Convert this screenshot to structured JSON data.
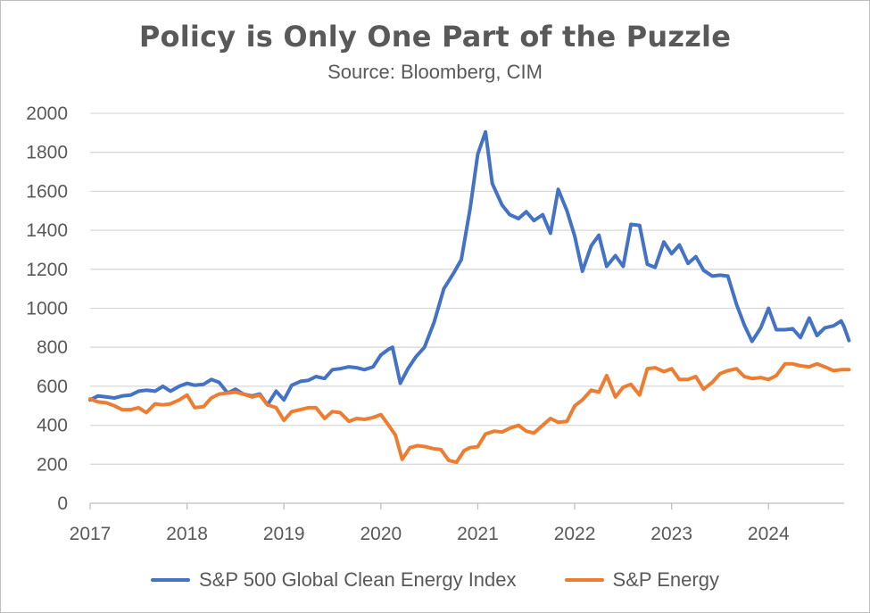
{
  "chart_data": {
    "type": "line",
    "title": "Policy is Only One Part of the Puzzle",
    "subtitle": "Source: Bloomberg, CIM",
    "xlabel": "",
    "ylabel": "",
    "ylim": [
      0,
      2000
    ],
    "y_ticks": [
      "0",
      "200",
      "400",
      "600",
      "800",
      "1000",
      "1200",
      "1400",
      "1600",
      "1800",
      "2000"
    ],
    "x_ticks": [
      "2017",
      "2018",
      "2019",
      "2020",
      "2021",
      "2022",
      "2023",
      "2024"
    ],
    "xlim": [
      2017.0,
      2024.78
    ],
    "grid": true,
    "legend_position": "bottom",
    "series": [
      {
        "name": "S&P 500 Global Clean Energy Index",
        "color": "#4472C4",
        "points": [
          [
            2017.0,
            530
          ],
          [
            2017.08,
            550
          ],
          [
            2017.17,
            545
          ],
          [
            2017.25,
            540
          ],
          [
            2017.33,
            550
          ],
          [
            2017.42,
            555
          ],
          [
            2017.5,
            575
          ],
          [
            2017.58,
            580
          ],
          [
            2017.67,
            575
          ],
          [
            2017.75,
            600
          ],
          [
            2017.83,
            575
          ],
          [
            2017.92,
            600
          ],
          [
            2018.0,
            615
          ],
          [
            2018.08,
            605
          ],
          [
            2018.17,
            610
          ],
          [
            2018.25,
            635
          ],
          [
            2018.33,
            620
          ],
          [
            2018.42,
            565
          ],
          [
            2018.5,
            585
          ],
          [
            2018.58,
            560
          ],
          [
            2018.67,
            550
          ],
          [
            2018.75,
            560
          ],
          [
            2018.83,
            505
          ],
          [
            2018.92,
            575
          ],
          [
            2019.0,
            530
          ],
          [
            2019.08,
            605
          ],
          [
            2019.17,
            625
          ],
          [
            2019.25,
            630
          ],
          [
            2019.33,
            650
          ],
          [
            2019.42,
            640
          ],
          [
            2019.5,
            685
          ],
          [
            2019.58,
            690
          ],
          [
            2019.67,
            700
          ],
          [
            2019.75,
            695
          ],
          [
            2019.83,
            685
          ],
          [
            2019.92,
            700
          ],
          [
            2020.0,
            760
          ],
          [
            2020.08,
            790
          ],
          [
            2020.12,
            800
          ],
          [
            2020.2,
            615
          ],
          [
            2020.28,
            690
          ],
          [
            2020.36,
            750
          ],
          [
            2020.45,
            800
          ],
          [
            2020.55,
            930
          ],
          [
            2020.65,
            1100
          ],
          [
            2020.75,
            1180
          ],
          [
            2020.83,
            1250
          ],
          [
            2020.92,
            1510
          ],
          [
            2021.0,
            1790
          ],
          [
            2021.08,
            1905
          ],
          [
            2021.15,
            1640
          ],
          [
            2021.25,
            1530
          ],
          [
            2021.33,
            1480
          ],
          [
            2021.42,
            1460
          ],
          [
            2021.5,
            1495
          ],
          [
            2021.58,
            1450
          ],
          [
            2021.67,
            1480
          ],
          [
            2021.75,
            1385
          ],
          [
            2021.83,
            1610
          ],
          [
            2021.92,
            1500
          ],
          [
            2022.0,
            1370
          ],
          [
            2022.08,
            1190
          ],
          [
            2022.17,
            1320
          ],
          [
            2022.25,
            1375
          ],
          [
            2022.33,
            1215
          ],
          [
            2022.42,
            1270
          ],
          [
            2022.5,
            1215
          ],
          [
            2022.58,
            1430
          ],
          [
            2022.67,
            1425
          ],
          [
            2022.75,
            1225
          ],
          [
            2022.83,
            1210
          ],
          [
            2022.92,
            1340
          ],
          [
            2023.0,
            1280
          ],
          [
            2023.08,
            1325
          ],
          [
            2023.17,
            1230
          ],
          [
            2023.25,
            1265
          ],
          [
            2023.33,
            1195
          ],
          [
            2023.42,
            1165
          ],
          [
            2023.5,
            1170
          ],
          [
            2023.58,
            1165
          ],
          [
            2023.67,
            1020
          ],
          [
            2023.75,
            915
          ],
          [
            2023.83,
            830
          ],
          [
            2023.92,
            900
          ],
          [
            2024.0,
            1000
          ],
          [
            2024.08,
            890
          ],
          [
            2024.17,
            890
          ],
          [
            2024.25,
            895
          ],
          [
            2024.33,
            850
          ],
          [
            2024.42,
            950
          ],
          [
            2024.5,
            860
          ],
          [
            2024.58,
            900
          ],
          [
            2024.67,
            910
          ],
          [
            2024.75,
            935
          ],
          [
            2024.78,
            905
          ],
          [
            2024.83,
            835
          ]
        ]
      },
      {
        "name": "S&P Energy",
        "color": "#ED7D31",
        "points": [
          [
            2017.0,
            535
          ],
          [
            2017.08,
            520
          ],
          [
            2017.17,
            515
          ],
          [
            2017.25,
            500
          ],
          [
            2017.33,
            480
          ],
          [
            2017.42,
            480
          ],
          [
            2017.5,
            490
          ],
          [
            2017.58,
            465
          ],
          [
            2017.67,
            510
          ],
          [
            2017.75,
            505
          ],
          [
            2017.83,
            510
          ],
          [
            2017.92,
            530
          ],
          [
            2018.0,
            555
          ],
          [
            2018.08,
            490
          ],
          [
            2018.17,
            495
          ],
          [
            2018.25,
            540
          ],
          [
            2018.33,
            560
          ],
          [
            2018.42,
            565
          ],
          [
            2018.5,
            570
          ],
          [
            2018.58,
            560
          ],
          [
            2018.67,
            545
          ],
          [
            2018.75,
            555
          ],
          [
            2018.83,
            505
          ],
          [
            2018.92,
            490
          ],
          [
            2019.0,
            425
          ],
          [
            2019.08,
            470
          ],
          [
            2019.17,
            480
          ],
          [
            2019.25,
            490
          ],
          [
            2019.33,
            490
          ],
          [
            2019.42,
            435
          ],
          [
            2019.5,
            470
          ],
          [
            2019.58,
            465
          ],
          [
            2019.67,
            420
          ],
          [
            2019.75,
            435
          ],
          [
            2019.83,
            430
          ],
          [
            2019.92,
            440
          ],
          [
            2020.0,
            455
          ],
          [
            2020.08,
            400
          ],
          [
            2020.15,
            350
          ],
          [
            2020.22,
            225
          ],
          [
            2020.3,
            285
          ],
          [
            2020.38,
            295
          ],
          [
            2020.46,
            290
          ],
          [
            2020.54,
            280
          ],
          [
            2020.62,
            275
          ],
          [
            2020.7,
            220
          ],
          [
            2020.78,
            210
          ],
          [
            2020.86,
            270
          ],
          [
            2020.92,
            285
          ],
          [
            2021.0,
            290
          ],
          [
            2021.08,
            355
          ],
          [
            2021.17,
            370
          ],
          [
            2021.25,
            365
          ],
          [
            2021.33,
            385
          ],
          [
            2021.42,
            400
          ],
          [
            2021.5,
            370
          ],
          [
            2021.58,
            360
          ],
          [
            2021.67,
            400
          ],
          [
            2021.75,
            435
          ],
          [
            2021.83,
            415
          ],
          [
            2021.92,
            420
          ],
          [
            2022.0,
            500
          ],
          [
            2022.08,
            530
          ],
          [
            2022.17,
            580
          ],
          [
            2022.25,
            570
          ],
          [
            2022.33,
            655
          ],
          [
            2022.42,
            545
          ],
          [
            2022.5,
            595
          ],
          [
            2022.58,
            610
          ],
          [
            2022.67,
            555
          ],
          [
            2022.75,
            690
          ],
          [
            2022.83,
            695
          ],
          [
            2022.92,
            675
          ],
          [
            2023.0,
            690
          ],
          [
            2023.08,
            635
          ],
          [
            2023.17,
            635
          ],
          [
            2023.25,
            650
          ],
          [
            2023.33,
            585
          ],
          [
            2023.42,
            620
          ],
          [
            2023.5,
            665
          ],
          [
            2023.58,
            680
          ],
          [
            2023.67,
            690
          ],
          [
            2023.75,
            650
          ],
          [
            2023.83,
            640
          ],
          [
            2023.92,
            645
          ],
          [
            2024.0,
            635
          ],
          [
            2024.08,
            655
          ],
          [
            2024.17,
            715
          ],
          [
            2024.25,
            715
          ],
          [
            2024.33,
            705
          ],
          [
            2024.42,
            700
          ],
          [
            2024.5,
            715
          ],
          [
            2024.58,
            700
          ],
          [
            2024.67,
            680
          ],
          [
            2024.75,
            685
          ],
          [
            2024.83,
            685
          ]
        ]
      }
    ]
  }
}
